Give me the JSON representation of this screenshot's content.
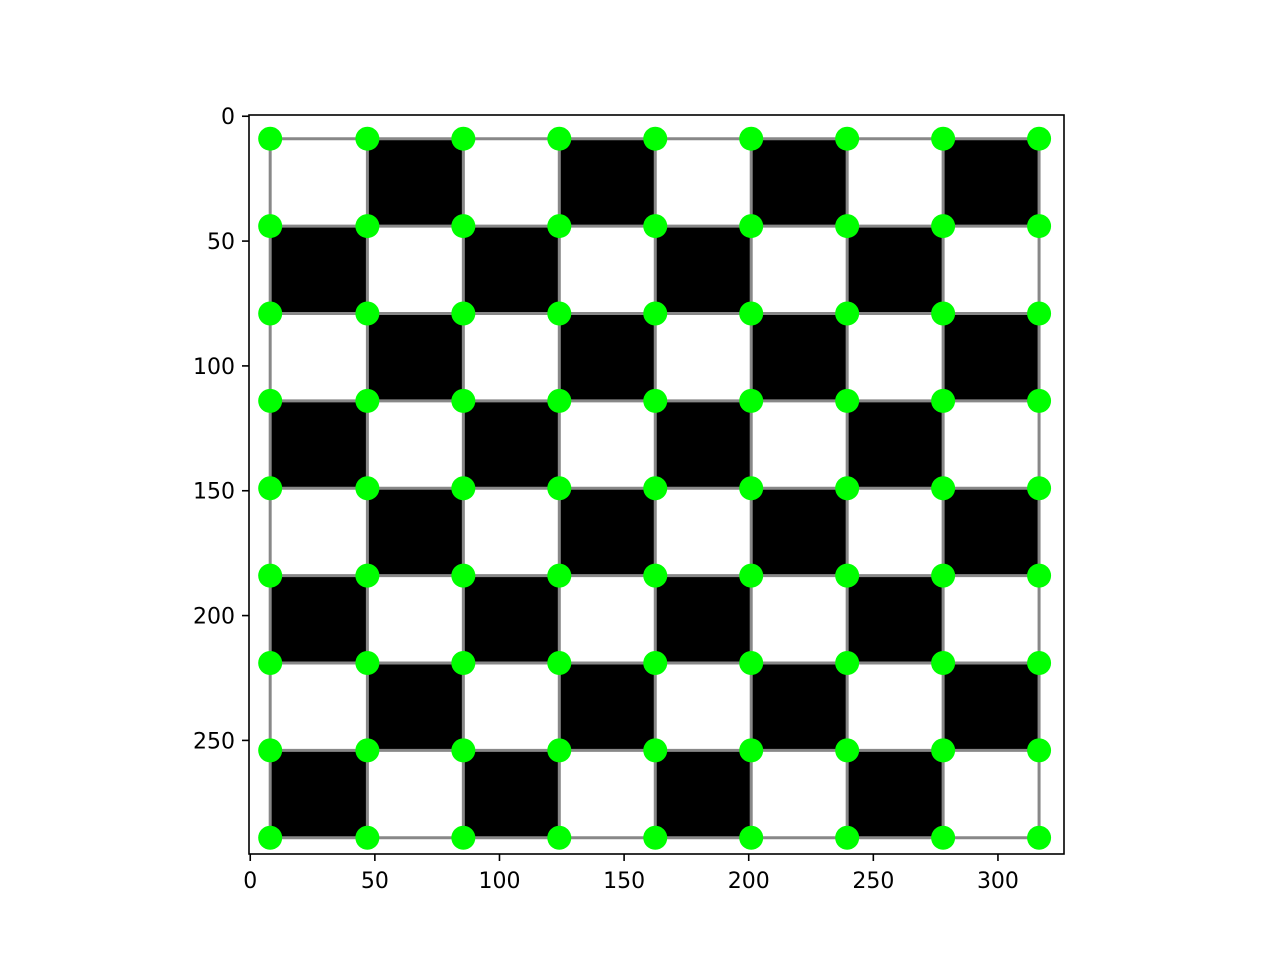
{
  "chart_data": {
    "type": "image",
    "title": "",
    "xlabel": "",
    "ylabel": "",
    "xlim": [
      -0.5,
      326.5
    ],
    "ylim": [
      295.5,
      -0.5
    ],
    "x_ticks": [
      0,
      50,
      100,
      150,
      200,
      250,
      300
    ],
    "y_ticks": [
      0,
      50,
      100,
      150,
      200,
      250
    ],
    "x_tick_labels": [
      "0",
      "50",
      "100",
      "150",
      "200",
      "250",
      "300"
    ],
    "y_tick_labels": [
      "0",
      "50",
      "100",
      "150",
      "200",
      "250"
    ],
    "checkerboard": {
      "rows": 8,
      "cols": 8,
      "x_lines": [
        8,
        47,
        85.5,
        124,
        162.5,
        201,
        239.5,
        278,
        316.5
      ],
      "y_lines": [
        9,
        44,
        79,
        114,
        149,
        184,
        219,
        254,
        289
      ],
      "top_left_color": "white",
      "dark_color": "#000000",
      "light_color": "#ffffff",
      "grid_line_color": "#888888"
    },
    "corner_points": {
      "color": "#00ff00",
      "x": [
        8,
        47,
        85.5,
        124,
        162.5,
        201,
        239.5,
        278,
        316.5
      ],
      "y": [
        9,
        44,
        79,
        114,
        149,
        184,
        219,
        254,
        289
      ]
    }
  }
}
